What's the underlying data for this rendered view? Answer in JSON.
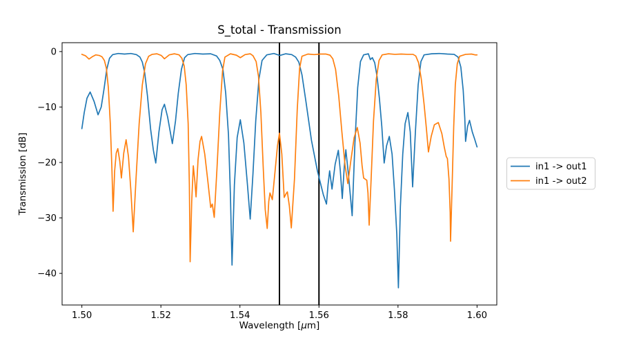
{
  "figure_title": "S_total - Transmission",
  "chart_data": {
    "type": "line",
    "title": "S_total - Transmission",
    "xlabel": {
      "pre": "Wavelength [",
      "mu": "μ",
      "post": "m]"
    },
    "ylabel": "Transmission [dB]",
    "xlim": [
      1.495,
      1.605
    ],
    "ylim": [
      -45.7,
      1.6
    ],
    "grid": false,
    "legend_position": "right-outside",
    "xticks": {
      "values": [
        1.5,
        1.52,
        1.54,
        1.56,
        1.58,
        1.6
      ],
      "labels": [
        "1.50",
        "1.52",
        "1.54",
        "1.56",
        "1.58",
        "1.60"
      ]
    },
    "yticks": {
      "values": [
        0,
        -10,
        -20,
        -30,
        -40
      ],
      "labels": [
        "0",
        "−10",
        "−20",
        "−30",
        "−40"
      ]
    },
    "annotations": {
      "vlines": [
        {
          "x": 1.55,
          "color": "#000000",
          "width": 2
        },
        {
          "x": 1.56,
          "color": "#000000",
          "width": 2
        }
      ]
    },
    "series": [
      {
        "name": "in1 -> out1",
        "color": "#1f77b4",
        "points": [
          [
            1.5,
            -13.9
          ],
          [
            1.5006,
            -11.0
          ],
          [
            1.5013,
            -8.4
          ],
          [
            1.5021,
            -7.3
          ],
          [
            1.5031,
            -9.0
          ],
          [
            1.5041,
            -11.4
          ],
          [
            1.5049,
            -10.0
          ],
          [
            1.5056,
            -6.8
          ],
          [
            1.5063,
            -3.2
          ],
          [
            1.507,
            -1.2
          ],
          [
            1.5078,
            -0.55
          ],
          [
            1.5092,
            -0.35
          ],
          [
            1.5108,
            -0.45
          ],
          [
            1.5124,
            -0.35
          ],
          [
            1.5138,
            -0.55
          ],
          [
            1.5147,
            -1.0
          ],
          [
            1.5153,
            -1.9
          ],
          [
            1.5159,
            -3.8
          ],
          [
            1.5166,
            -8.0
          ],
          [
            1.5174,
            -14.0
          ],
          [
            1.5181,
            -17.8
          ],
          [
            1.5187,
            -20.1
          ],
          [
            1.5195,
            -14.5
          ],
          [
            1.5203,
            -10.5
          ],
          [
            1.5209,
            -9.5
          ],
          [
            1.5217,
            -11.8
          ],
          [
            1.5224,
            -14.6
          ],
          [
            1.5229,
            -16.6
          ],
          [
            1.5237,
            -12.5
          ],
          [
            1.5244,
            -7.5
          ],
          [
            1.5252,
            -3.2
          ],
          [
            1.526,
            -1.1
          ],
          [
            1.5268,
            -0.55
          ],
          [
            1.5286,
            -0.35
          ],
          [
            1.5306,
            -0.45
          ],
          [
            1.5326,
            -0.4
          ],
          [
            1.5341,
            -0.8
          ],
          [
            1.5349,
            -1.6
          ],
          [
            1.5357,
            -3.2
          ],
          [
            1.5364,
            -7.5
          ],
          [
            1.5371,
            -15.0
          ],
          [
            1.5376,
            -26.0
          ],
          [
            1.538,
            -38.5
          ],
          [
            1.5386,
            -24.0
          ],
          [
            1.5393,
            -15.5
          ],
          [
            1.5401,
            -12.3
          ],
          [
            1.541,
            -16.5
          ],
          [
            1.5419,
            -24.0
          ],
          [
            1.5426,
            -30.2
          ],
          [
            1.5433,
            -22.0
          ],
          [
            1.544,
            -12.5
          ],
          [
            1.5448,
            -5.0
          ],
          [
            1.5456,
            -1.6
          ],
          [
            1.5468,
            -0.6
          ],
          [
            1.5486,
            -0.35
          ],
          [
            1.5501,
            -0.7
          ],
          [
            1.5516,
            -0.4
          ],
          [
            1.5531,
            -0.55
          ],
          [
            1.5541,
            -1.0
          ],
          [
            1.5549,
            -1.9
          ],
          [
            1.5557,
            -4.2
          ],
          [
            1.5567,
            -9.0
          ],
          [
            1.5581,
            -16.0
          ],
          [
            1.5596,
            -21.5
          ],
          [
            1.5611,
            -25.8
          ],
          [
            1.5619,
            -27.5
          ],
          [
            1.5623,
            -24.0
          ],
          [
            1.5627,
            -21.5
          ],
          [
            1.5633,
            -24.8
          ],
          [
            1.5641,
            -20.3
          ],
          [
            1.5649,
            -17.8
          ],
          [
            1.5654,
            -21.5
          ],
          [
            1.5659,
            -26.5
          ],
          [
            1.5664,
            -20.8
          ],
          [
            1.5668,
            -17.7
          ],
          [
            1.5675,
            -22.5
          ],
          [
            1.5684,
            -29.6
          ],
          [
            1.5691,
            -16.5
          ],
          [
            1.5698,
            -6.5
          ],
          [
            1.5705,
            -1.8
          ],
          [
            1.5713,
            -0.6
          ],
          [
            1.5725,
            -0.4
          ],
          [
            1.573,
            -1.45
          ],
          [
            1.5735,
            -1.1
          ],
          [
            1.5741,
            -2.0
          ],
          [
            1.5747,
            -4.5
          ],
          [
            1.5753,
            -8.5
          ],
          [
            1.5759,
            -13.5
          ],
          [
            1.5765,
            -20.1
          ],
          [
            1.5771,
            -17.0
          ],
          [
            1.5778,
            -15.3
          ],
          [
            1.5785,
            -18.5
          ],
          [
            1.5791,
            -25.0
          ],
          [
            1.5797,
            -33.0
          ],
          [
            1.5801,
            -42.6
          ],
          [
            1.5806,
            -28.0
          ],
          [
            1.5812,
            -18.5
          ],
          [
            1.5818,
            -13.0
          ],
          [
            1.5825,
            -11.0
          ],
          [
            1.5831,
            -14.5
          ],
          [
            1.5837,
            -24.4
          ],
          [
            1.5844,
            -14.5
          ],
          [
            1.5851,
            -6.0
          ],
          [
            1.5858,
            -1.8
          ],
          [
            1.5866,
            -0.6
          ],
          [
            1.5885,
            -0.4
          ],
          [
            1.5905,
            -0.35
          ],
          [
            1.5925,
            -0.45
          ],
          [
            1.5942,
            -0.5
          ],
          [
            1.5952,
            -1.0
          ],
          [
            1.5959,
            -2.8
          ],
          [
            1.5965,
            -7.0
          ],
          [
            1.5969,
            -12.0
          ],
          [
            1.5971,
            -16.2
          ],
          [
            1.5976,
            -13.5
          ],
          [
            1.5981,
            -12.4
          ],
          [
            1.5988,
            -14.5
          ],
          [
            1.5994,
            -15.8
          ],
          [
            1.6,
            -17.2
          ]
        ]
      },
      {
        "name": "in1 -> out2",
        "color": "#ff7f0e",
        "points": [
          [
            1.5,
            -0.5
          ],
          [
            1.5009,
            -0.75
          ],
          [
            1.5018,
            -1.35
          ],
          [
            1.5026,
            -0.95
          ],
          [
            1.5035,
            -0.6
          ],
          [
            1.5044,
            -0.7
          ],
          [
            1.5051,
            -0.95
          ],
          [
            1.5057,
            -1.6
          ],
          [
            1.5062,
            -3.0
          ],
          [
            1.5067,
            -6.5
          ],
          [
            1.5072,
            -13.0
          ],
          [
            1.5076,
            -21.0
          ],
          [
            1.5079,
            -28.8
          ],
          [
            1.5083,
            -21.5
          ],
          [
            1.5087,
            -18.3
          ],
          [
            1.5091,
            -17.5
          ],
          [
            1.5096,
            -19.8
          ],
          [
            1.51,
            -22.8
          ],
          [
            1.5106,
            -18.3
          ],
          [
            1.5112,
            -15.9
          ],
          [
            1.5118,
            -19.0
          ],
          [
            1.5124,
            -25.0
          ],
          [
            1.513,
            -32.5
          ],
          [
            1.5137,
            -23.0
          ],
          [
            1.5145,
            -13.0
          ],
          [
            1.5153,
            -6.0
          ],
          [
            1.5161,
            -2.2
          ],
          [
            1.5169,
            -0.85
          ],
          [
            1.5178,
            -0.5
          ],
          [
            1.519,
            -0.4
          ],
          [
            1.5201,
            -0.7
          ],
          [
            1.5209,
            -1.3
          ],
          [
            1.5221,
            -0.6
          ],
          [
            1.5234,
            -0.4
          ],
          [
            1.5246,
            -0.6
          ],
          [
            1.5253,
            -1.2
          ],
          [
            1.5259,
            -2.6
          ],
          [
            1.5264,
            -6.0
          ],
          [
            1.5269,
            -13.0
          ],
          [
            1.5272,
            -24.0
          ],
          [
            1.5274,
            -37.9
          ],
          [
            1.5278,
            -27.0
          ],
          [
            1.5282,
            -20.6
          ],
          [
            1.5286,
            -23.5
          ],
          [
            1.5289,
            -26.2
          ],
          [
            1.5294,
            -19.5
          ],
          [
            1.5299,
            -16.2
          ],
          [
            1.5303,
            -15.3
          ],
          [
            1.5311,
            -18.5
          ],
          [
            1.5319,
            -23.5
          ],
          [
            1.5326,
            -28.1
          ],
          [
            1.533,
            -27.5
          ],
          [
            1.5335,
            -29.9
          ],
          [
            1.5342,
            -21.0
          ],
          [
            1.5349,
            -11.0
          ],
          [
            1.5356,
            -3.5
          ],
          [
            1.5362,
            -1.0
          ],
          [
            1.5376,
            -0.4
          ],
          [
            1.5391,
            -0.65
          ],
          [
            1.5401,
            -1.1
          ],
          [
            1.5413,
            -0.55
          ],
          [
            1.5426,
            -0.4
          ],
          [
            1.5433,
            -0.75
          ],
          [
            1.5441,
            -1.8
          ],
          [
            1.5447,
            -4.5
          ],
          [
            1.5453,
            -11.0
          ],
          [
            1.5459,
            -21.0
          ],
          [
            1.5464,
            -28.5
          ],
          [
            1.5469,
            -31.9
          ],
          [
            1.5473,
            -27.0
          ],
          [
            1.5476,
            -25.5
          ],
          [
            1.5482,
            -26.7
          ],
          [
            1.5489,
            -21.5
          ],
          [
            1.5495,
            -17.0
          ],
          [
            1.55,
            -14.7
          ],
          [
            1.5506,
            -18.5
          ],
          [
            1.5512,
            -26.3
          ],
          [
            1.5517,
            -25.6
          ],
          [
            1.552,
            -25.3
          ],
          [
            1.5525,
            -27.8
          ],
          [
            1.553,
            -31.8
          ],
          [
            1.5538,
            -23.0
          ],
          [
            1.5545,
            -10.5
          ],
          [
            1.5551,
            -3.0
          ],
          [
            1.5557,
            -0.85
          ],
          [
            1.5572,
            -0.45
          ],
          [
            1.5588,
            -0.55
          ],
          [
            1.5603,
            -0.45
          ],
          [
            1.5618,
            -0.45
          ],
          [
            1.5628,
            -0.65
          ],
          [
            1.5635,
            -1.3
          ],
          [
            1.5642,
            -3.2
          ],
          [
            1.565,
            -8.0
          ],
          [
            1.5658,
            -14.5
          ],
          [
            1.5666,
            -20.5
          ],
          [
            1.5673,
            -23.8
          ],
          [
            1.5681,
            -19.5
          ],
          [
            1.5689,
            -15.5
          ],
          [
            1.5697,
            -13.7
          ],
          [
            1.5704,
            -16.5
          ],
          [
            1.5709,
            -20.5
          ],
          [
            1.5713,
            -22.8
          ],
          [
            1.5721,
            -23.2
          ],
          [
            1.5724,
            -25.5
          ],
          [
            1.5727,
            -31.3
          ],
          [
            1.5732,
            -23.0
          ],
          [
            1.5738,
            -12.5
          ],
          [
            1.5745,
            -5.0
          ],
          [
            1.5752,
            -1.6
          ],
          [
            1.576,
            -0.6
          ],
          [
            1.5776,
            -0.4
          ],
          [
            1.5792,
            -0.5
          ],
          [
            1.5808,
            -0.45
          ],
          [
            1.5824,
            -0.5
          ],
          [
            1.5838,
            -0.5
          ],
          [
            1.5845,
            -0.8
          ],
          [
            1.5852,
            -2.0
          ],
          [
            1.5859,
            -5.0
          ],
          [
            1.5866,
            -9.5
          ],
          [
            1.5872,
            -14.0
          ],
          [
            1.5877,
            -18.1
          ],
          [
            1.5884,
            -15.3
          ],
          [
            1.5892,
            -13.2
          ],
          [
            1.5902,
            -12.8
          ],
          [
            1.5911,
            -14.8
          ],
          [
            1.5917,
            -17.2
          ],
          [
            1.5922,
            -18.9
          ],
          [
            1.5925,
            -19.3
          ],
          [
            1.5929,
            -23.0
          ],
          [
            1.5932,
            -29.0
          ],
          [
            1.5933,
            -34.2
          ],
          [
            1.5937,
            -24.0
          ],
          [
            1.5941,
            -13.5
          ],
          [
            1.5945,
            -6.0
          ],
          [
            1.595,
            -2.2
          ],
          [
            1.5956,
            -0.85
          ],
          [
            1.5971,
            -0.5
          ],
          [
            1.5986,
            -0.45
          ],
          [
            1.5995,
            -0.6
          ],
          [
            1.6,
            -0.6
          ]
        ]
      }
    ]
  }
}
